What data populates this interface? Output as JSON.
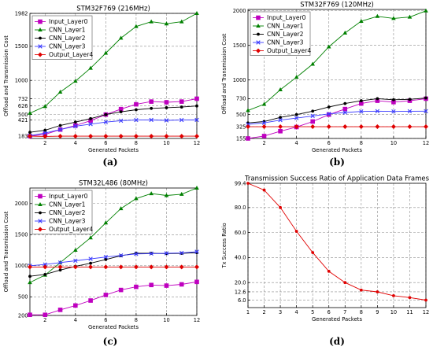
{
  "colors": {
    "input_layer0": "#bf00bf",
    "cnn_layer1": "#008000",
    "cnn_layer2": "#000000",
    "cnn_layer3": "#3b3bff",
    "output_layer4": "#e00000",
    "success": "#e00000",
    "grid": "#8c8c8c"
  },
  "chart_data": [
    {
      "type": "line",
      "panel_label": "(a)",
      "title": "STM32F769 (216MHz)",
      "xlabel": "Generated Packets",
      "ylabel": "Offload and Transmission Cost",
      "xlim": [
        1,
        12
      ],
      "ylim": [
        150,
        1982
      ],
      "x_ticks": [
        2,
        4,
        6,
        8,
        10,
        12
      ],
      "y_ticks": [
        183,
        421,
        500,
        626,
        732,
        1000,
        1500,
        1982
      ],
      "grid": true,
      "legend_position": "top-left",
      "x": [
        1,
        2,
        3,
        4,
        5,
        6,
        7,
        8,
        9,
        10,
        11,
        12
      ],
      "series": [
        {
          "name": "Input_Layer0",
          "marker": "square",
          "color_key": "input_layer0",
          "values": [
            183,
            210,
            280,
            340,
            410,
            500,
            580,
            650,
            690,
            680,
            690,
            732
          ]
        },
        {
          "name": "CNN_Layer1",
          "marker": "triangle",
          "color_key": "cnn_layer1",
          "values": [
            520,
            620,
            830,
            990,
            1180,
            1400,
            1620,
            1790,
            1860,
            1830,
            1860,
            1982
          ]
        },
        {
          "name": "CNN_Layer2",
          "marker": "dot",
          "color_key": "cnn_layer2",
          "values": [
            240,
            270,
            340,
            390,
            440,
            500,
            540,
            570,
            590,
            600,
            610,
            626
          ]
        },
        {
          "name": "CNN_Layer3",
          "marker": "x",
          "color_key": "cnn_layer3",
          "values": [
            190,
            230,
            280,
            330,
            360,
            390,
            410,
            420,
            421,
            415,
            420,
            421
          ]
        },
        {
          "name": "Output_Layer4",
          "marker": "diamond",
          "color_key": "output_layer4",
          "values": [
            183,
            180,
            183,
            183,
            183,
            183,
            183,
            183,
            183,
            183,
            183,
            183
          ]
        }
      ]
    },
    {
      "type": "line",
      "panel_label": "(b)",
      "title": "STM32F769 (120MHz)",
      "xlabel": "Generated Packets",
      "ylabel": "Offload and Transmission Cost",
      "xlim": [
        1,
        12
      ],
      "ylim": [
        155,
        2020
      ],
      "x_ticks": [
        2,
        4,
        6,
        8,
        10,
        12
      ],
      "y_ticks": [
        155,
        325,
        500,
        730,
        1000,
        1500,
        2000
      ],
      "grid": true,
      "legend_position": "top-left",
      "x": [
        1,
        2,
        3,
        4,
        5,
        6,
        7,
        8,
        9,
        10,
        11,
        12
      ],
      "series": [
        {
          "name": "Input_Layer0",
          "marker": "square",
          "color_key": "input_layer0",
          "values": [
            155,
            190,
            260,
            320,
            400,
            500,
            580,
            660,
            700,
            680,
            700,
            730
          ]
        },
        {
          "name": "CNN_Layer1",
          "marker": "triangle",
          "color_key": "cnn_layer1",
          "values": [
            560,
            650,
            860,
            1040,
            1230,
            1480,
            1680,
            1850,
            1920,
            1890,
            1910,
            2000
          ]
        },
        {
          "name": "CNN_Layer2",
          "marker": "dot",
          "color_key": "cnn_layer2",
          "values": [
            380,
            400,
            460,
            500,
            550,
            610,
            660,
            700,
            730,
            715,
            720,
            740
          ]
        },
        {
          "name": "CNN_Layer3",
          "marker": "x",
          "color_key": "cnn_layer3",
          "values": [
            360,
            380,
            420,
            450,
            480,
            510,
            530,
            545,
            550,
            545,
            548,
            550
          ]
        },
        {
          "name": "Output_Layer4",
          "marker": "diamond",
          "color_key": "output_layer4",
          "values": [
            325,
            325,
            325,
            325,
            325,
            325,
            325,
            325,
            325,
            325,
            325,
            325
          ]
        }
      ]
    },
    {
      "type": "line",
      "panel_label": "(c)",
      "title": "STM32L486 (80MHz)",
      "xlabel": "Generated Packets",
      "ylabel": "Offload and Transmission Cost",
      "xlim": [
        1,
        12
      ],
      "ylim": [
        200,
        2250
      ],
      "x_ticks": [
        2,
        4,
        6,
        8,
        10,
        12
      ],
      "y_ticks": [
        200,
        500,
        1000,
        1500,
        2000
      ],
      "grid": true,
      "legend_position": "top-left",
      "x": [
        1,
        2,
        3,
        4,
        5,
        6,
        7,
        8,
        9,
        10,
        11,
        12
      ],
      "series": [
        {
          "name": "Input_Layer0",
          "marker": "square",
          "color_key": "input_layer0",
          "values": [
            210,
            210,
            290,
            360,
            440,
            530,
            610,
            660,
            690,
            680,
            700,
            740
          ]
        },
        {
          "name": "CNN_Layer1",
          "marker": "triangle",
          "color_key": "cnn_layer1",
          "values": [
            730,
            850,
            1050,
            1250,
            1450,
            1690,
            1920,
            2080,
            2160,
            2130,
            2150,
            2250
          ]
        },
        {
          "name": "CNN_Layer2",
          "marker": "dot",
          "color_key": "cnn_layer2",
          "values": [
            830,
            860,
            930,
            990,
            1040,
            1100,
            1160,
            1200,
            1200,
            1195,
            1200,
            1210
          ]
        },
        {
          "name": "CNN_Layer3",
          "marker": "x",
          "color_key": "cnn_layer3",
          "values": [
            1000,
            1020,
            1050,
            1080,
            1110,
            1140,
            1165,
            1190,
            1195,
            1200,
            1205,
            1225
          ]
        },
        {
          "name": "Output_Layer4",
          "marker": "diamond",
          "color_key": "output_layer4",
          "values": [
            980,
            980,
            980,
            980,
            980,
            980,
            980,
            980,
            980,
            980,
            980,
            980
          ]
        }
      ]
    },
    {
      "type": "line",
      "panel_label": "(d)",
      "title": "Transmission Success Ratio of Application Data Frames",
      "xlabel": "Generated Packets",
      "ylabel": "Tx Success Ratio",
      "xlim": [
        1,
        12
      ],
      "ylim": [
        0,
        99.4
      ],
      "x_ticks": [
        1,
        2,
        3,
        4,
        5,
        6,
        7,
        8,
        9,
        10,
        11,
        12
      ],
      "y_ticks": [
        6.0,
        12.6,
        20.0,
        40.0,
        60.0,
        80.0,
        99.4
      ],
      "y_tick_labels": [
        "6.0",
        "12.6",
        "20.0",
        "40.0",
        "60.0",
        "80.0",
        "99.4"
      ],
      "grid": true,
      "x": [
        1,
        2,
        3,
        4,
        5,
        6,
        7,
        8,
        9,
        10,
        11,
        12
      ],
      "series": [
        {
          "marker": "dot",
          "color_key": "success",
          "values": [
            99.4,
            94.0,
            80.0,
            61.0,
            44.0,
            29.0,
            20.0,
            14.0,
            12.6,
            9.5,
            8.0,
            6.0
          ]
        }
      ]
    }
  ]
}
